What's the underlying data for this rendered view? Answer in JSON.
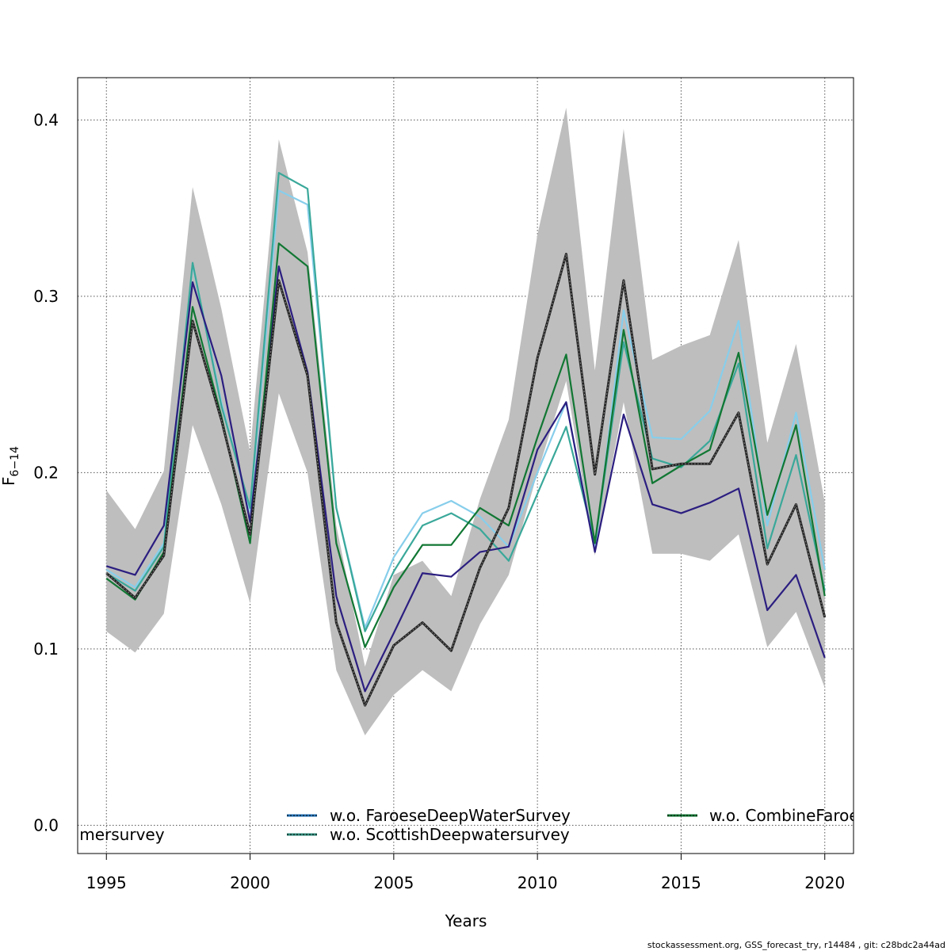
{
  "chart_data": {
    "type": "line",
    "title": "",
    "xlabel": "Years",
    "ylabel_main": "F",
    "ylabel_sub": "6−14",
    "xlim": [
      1994,
      2021
    ],
    "ylim": [
      -0.016,
      0.424
    ],
    "xticks": [
      1995,
      2000,
      2005,
      2010,
      2015,
      2020
    ],
    "yticks": [
      "0.0",
      "0.1",
      "0.2",
      "0.3",
      "0.4"
    ],
    "ytick_values": [
      0.0,
      0.1,
      0.2,
      0.3,
      0.4
    ],
    "grid": true,
    "x": [
      1995,
      1996,
      1997,
      1998,
      1999,
      2000,
      2001,
      2002,
      2003,
      2004,
      2005,
      2006,
      2007,
      2008,
      2009,
      2010,
      2011,
      2012,
      2013,
      2014,
      2015,
      2016,
      2017,
      2018,
      2019,
      2020
    ],
    "confidence_band": {
      "color": "#bebebe",
      "upper": [
        0.19,
        0.168,
        0.201,
        0.362,
        0.293,
        0.212,
        0.389,
        0.325,
        0.17,
        0.09,
        0.142,
        0.15,
        0.13,
        0.185,
        0.23,
        0.335,
        0.407,
        0.258,
        0.395,
        0.264,
        0.272,
        0.278,
        0.332,
        0.217,
        0.273,
        0.183
      ],
      "lower": [
        0.11,
        0.098,
        0.12,
        0.227,
        0.182,
        0.126,
        0.245,
        0.2,
        0.088,
        0.051,
        0.074,
        0.088,
        0.076,
        0.114,
        0.142,
        0.2,
        0.252,
        0.153,
        0.24,
        0.154,
        0.154,
        0.15,
        0.165,
        0.101,
        0.121,
        0.078
      ]
    },
    "series": [
      {
        "name": "",
        "color": "#87ceeb",
        "style": "solid",
        "values": [
          0.145,
          0.135,
          0.16,
          0.318,
          0.24,
          0.178,
          0.36,
          0.352,
          0.18,
          0.112,
          0.152,
          0.177,
          0.184,
          0.175,
          0.158,
          0.2,
          0.24,
          0.156,
          0.292,
          0.22,
          0.219,
          0.235,
          0.286,
          0.17,
          0.234,
          0.145
        ]
      },
      {
        "name": "",
        "color": "#3aa89a",
        "style": "solid",
        "values": [
          0.143,
          0.133,
          0.158,
          0.319,
          0.238,
          0.18,
          0.37,
          0.361,
          0.18,
          0.11,
          0.144,
          0.17,
          0.177,
          0.168,
          0.15,
          0.188,
          0.226,
          0.16,
          0.274,
          0.208,
          0.203,
          0.218,
          0.262,
          0.157,
          0.21,
          0.133
        ]
      },
      {
        "name": "",
        "color": "#2b1e80",
        "style": "solid",
        "values": [
          0.147,
          0.142,
          0.17,
          0.308,
          0.255,
          0.172,
          0.317,
          0.257,
          0.13,
          0.076,
          0.109,
          0.143,
          0.141,
          0.155,
          0.158,
          0.213,
          0.24,
          0.155,
          0.233,
          0.182,
          0.177,
          0.183,
          0.191,
          0.122,
          0.142,
          0.095
        ]
      },
      {
        "name": "",
        "color": "#117733",
        "style": "solid",
        "values": [
          0.14,
          0.128,
          0.155,
          0.294,
          0.232,
          0.16,
          0.33,
          0.317,
          0.16,
          0.101,
          0.135,
          0.159,
          0.159,
          0.18,
          0.17,
          0.22,
          0.267,
          0.16,
          0.281,
          0.194,
          0.204,
          0.213,
          0.268,
          0.176,
          0.227,
          0.13
        ]
      },
      {
        "name": "",
        "color": "#000000",
        "style": "dashed",
        "width": 3,
        "base_color": "#222222",
        "values": [
          0.143,
          0.129,
          0.153,
          0.286,
          0.23,
          0.165,
          0.309,
          0.255,
          0.115,
          0.068,
          0.102,
          0.115,
          0.099,
          0.146,
          0.18,
          0.265,
          0.324,
          0.199,
          0.309,
          0.202,
          0.205,
          0.205,
          0.234,
          0.148,
          0.182,
          0.118
        ]
      }
    ],
    "legend": {
      "placement": "bottom",
      "entries": [
        {
          "label": "w.o. FaroeseDeepWaterSurvey",
          "line_color": "#1f6fb5"
        },
        {
          "label": "w.o. ScottishDeepwatersurvey",
          "line_color": "#2e8b7a"
        },
        {
          "label": "w.o. CombineFaroe",
          "line_color": "#117733"
        },
        {
          "label": "amersurvey",
          "line_color": ""
        }
      ]
    },
    "footer": "stockassessment.org, GSS_forecast_try, r14484 , git: c28bdc2a44ad"
  }
}
